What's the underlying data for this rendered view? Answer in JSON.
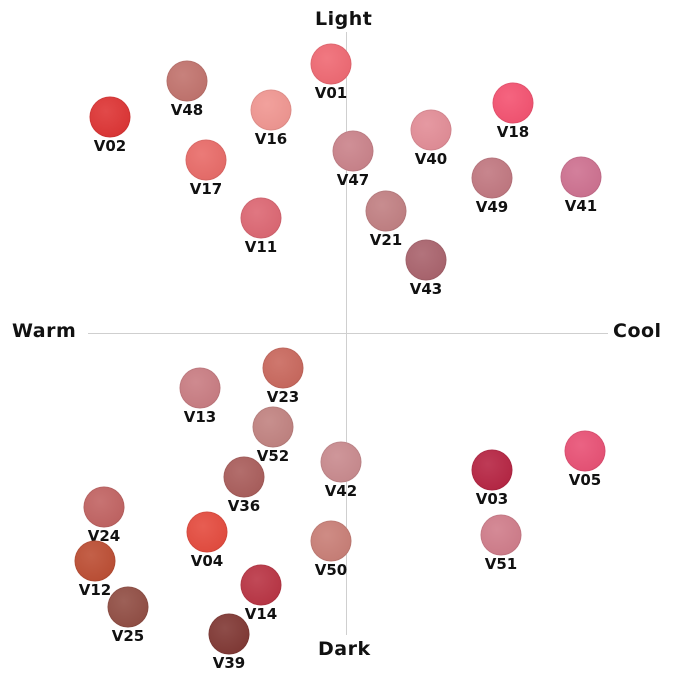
{
  "axes": {
    "top": "Light",
    "bottom": "Dark",
    "left": "Warm",
    "right": "Cool"
  },
  "swatches": [
    {
      "label": "V01",
      "color": "#ef6670"
    },
    {
      "label": "V48",
      "color": "#c0706a"
    },
    {
      "label": "V02",
      "color": "#dd3030"
    },
    {
      "label": "V16",
      "color": "#f0948f"
    },
    {
      "label": "V17",
      "color": "#e86865"
    },
    {
      "label": "V11",
      "color": "#dc6470"
    },
    {
      "label": "V47",
      "color": "#c98088"
    },
    {
      "label": "V40",
      "color": "#e28b95"
    },
    {
      "label": "V18",
      "color": "#f44f6e"
    },
    {
      "label": "V49",
      "color": "#c0757e"
    },
    {
      "label": "V41",
      "color": "#cd6e8e"
    },
    {
      "label": "V21",
      "color": "#c07d80"
    },
    {
      "label": "V43",
      "color": "#a8606a"
    },
    {
      "label": "V23",
      "color": "#c8655a"
    },
    {
      "label": "V13",
      "color": "#c87a80"
    },
    {
      "label": "V52",
      "color": "#c0807e"
    },
    {
      "label": "V36",
      "color": "#a85a58"
    },
    {
      "label": "V42",
      "color": "#c8888c"
    },
    {
      "label": "V24",
      "color": "#c0605f"
    },
    {
      "label": "V04",
      "color": "#e4473a"
    },
    {
      "label": "V50",
      "color": "#c87c74"
    },
    {
      "label": "V12",
      "color": "#bb4a2f"
    },
    {
      "label": "V14",
      "color": "#b83040"
    },
    {
      "label": "V25",
      "color": "#8f4a40"
    },
    {
      "label": "V39",
      "color": "#7e3430"
    },
    {
      "label": "V03",
      "color": "#b5203f"
    },
    {
      "label": "V05",
      "color": "#e84d72"
    },
    {
      "label": "V51",
      "color": "#cf7a88"
    }
  ]
}
